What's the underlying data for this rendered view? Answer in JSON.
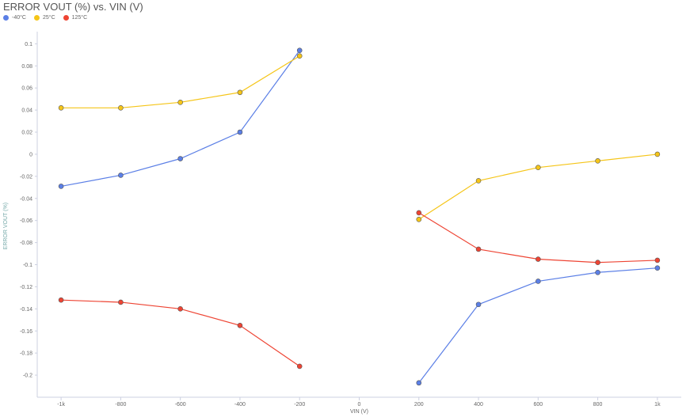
{
  "chart_data": {
    "type": "line",
    "title": "ERROR VOUT (%) vs. VIN (V)",
    "xlabel": "VIN (V)",
    "ylabel": "ERROR VOUT (%)",
    "xlim": [
      -1080,
      1080
    ],
    "ylim": [
      -0.22,
      0.111
    ],
    "x_ticks": [
      -1000,
      -800,
      -600,
      -400,
      -200,
      0,
      200,
      400,
      600,
      800,
      1000
    ],
    "x_tick_labels": [
      "-1k",
      "-800",
      "-600",
      "-400",
      "-200",
      "0",
      "200",
      "400",
      "600",
      "800",
      "1k"
    ],
    "y_ticks": [
      0.1,
      0.08,
      0.06,
      0.04,
      0.02,
      0,
      -0.02,
      -0.04,
      -0.06,
      -0.08,
      -0.1,
      -0.12,
      -0.14,
      -0.16,
      -0.18,
      -0.2
    ],
    "y_tick_labels": [
      "0.1",
      "0.08",
      "0.06",
      "0.04",
      "0.02",
      "0",
      "-0.02",
      "-0.04",
      "-0.06",
      "-0.08",
      "-0.1",
      "-0.12",
      "-0.14",
      "-0.16",
      "-0.18",
      "-0.2"
    ],
    "grid": false,
    "legend_placement": "top-left",
    "x": [
      -1000,
      -800,
      -600,
      -400,
      -200,
      200,
      400,
      600,
      800,
      1000
    ],
    "series": [
      {
        "name": "-40°C",
        "color": "#5b7fe6",
        "values": [
          -0.029,
          -0.019,
          -0.004,
          0.02,
          0.094,
          -0.207,
          -0.136,
          -0.115,
          -0.107,
          -0.103
        ]
      },
      {
        "name": "25°C",
        "color": "#f5c518",
        "values": [
          0.042,
          0.042,
          0.047,
          0.056,
          0.089,
          -0.059,
          -0.024,
          -0.012,
          -0.006,
          0
        ]
      },
      {
        "name": "125°C",
        "color": "#ee4433",
        "values": [
          -0.132,
          -0.134,
          -0.14,
          -0.155,
          -0.192,
          -0.053,
          -0.086,
          -0.095,
          -0.098,
          -0.096
        ]
      }
    ]
  }
}
